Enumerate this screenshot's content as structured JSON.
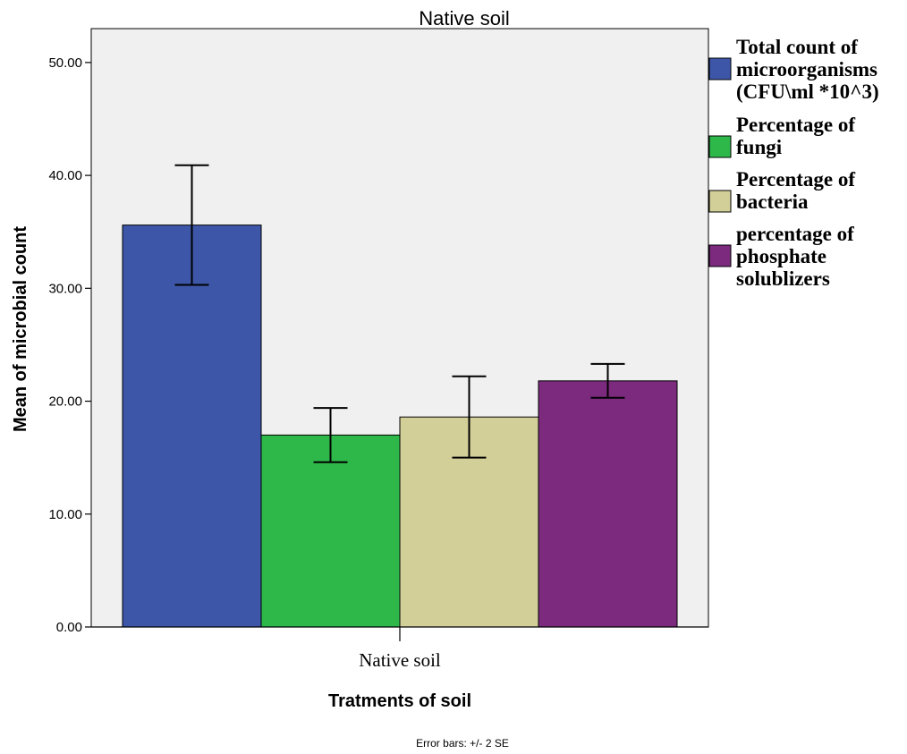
{
  "chart_data": {
    "type": "bar",
    "title": "Native soil",
    "xlabel": "Tratments of soil",
    "ylabel": "Mean of microbial count",
    "categories": [
      "Native soil"
    ],
    "series": [
      {
        "name": "Total count of microorganisms (CFU\\ml *10^3)",
        "legend_lines": [
          "Total count of",
          "microorganisms",
          "(CFU\\ml *10^3)"
        ],
        "values": [
          35.6
        ],
        "error_low": [
          30.3
        ],
        "error_high": [
          40.9
        ],
        "color": "#3d56a8"
      },
      {
        "name": "Percentage of fungi",
        "legend_lines": [
          "Percentage of",
          "fungi"
        ],
        "values": [
          17.0
        ],
        "error_low": [
          14.6
        ],
        "error_high": [
          19.4
        ],
        "color": "#2eb84a"
      },
      {
        "name": "Percentage of bacteria",
        "legend_lines": [
          "Percentage of",
          "bacteria"
        ],
        "values": [
          18.6
        ],
        "error_low": [
          15.0
        ],
        "error_high": [
          22.2
        ],
        "color": "#d3cf99"
      },
      {
        "name": "percentage of phosphate solublizers",
        "legend_lines": [
          "percentage of",
          "phosphate",
          "solublizers"
        ],
        "values": [
          21.8
        ],
        "error_low": [
          20.3
        ],
        "error_high": [
          23.3
        ],
        "color": "#7b2a7e"
      }
    ],
    "yticks": [
      "0.00",
      "10.00",
      "20.00",
      "30.00",
      "40.00",
      "50.00"
    ],
    "ylim": [
      0,
      53
    ],
    "grid": false,
    "legend_position": "right",
    "plot_background": "#f0f0f0",
    "footnote": "Error bars: +/- 2 SE"
  }
}
